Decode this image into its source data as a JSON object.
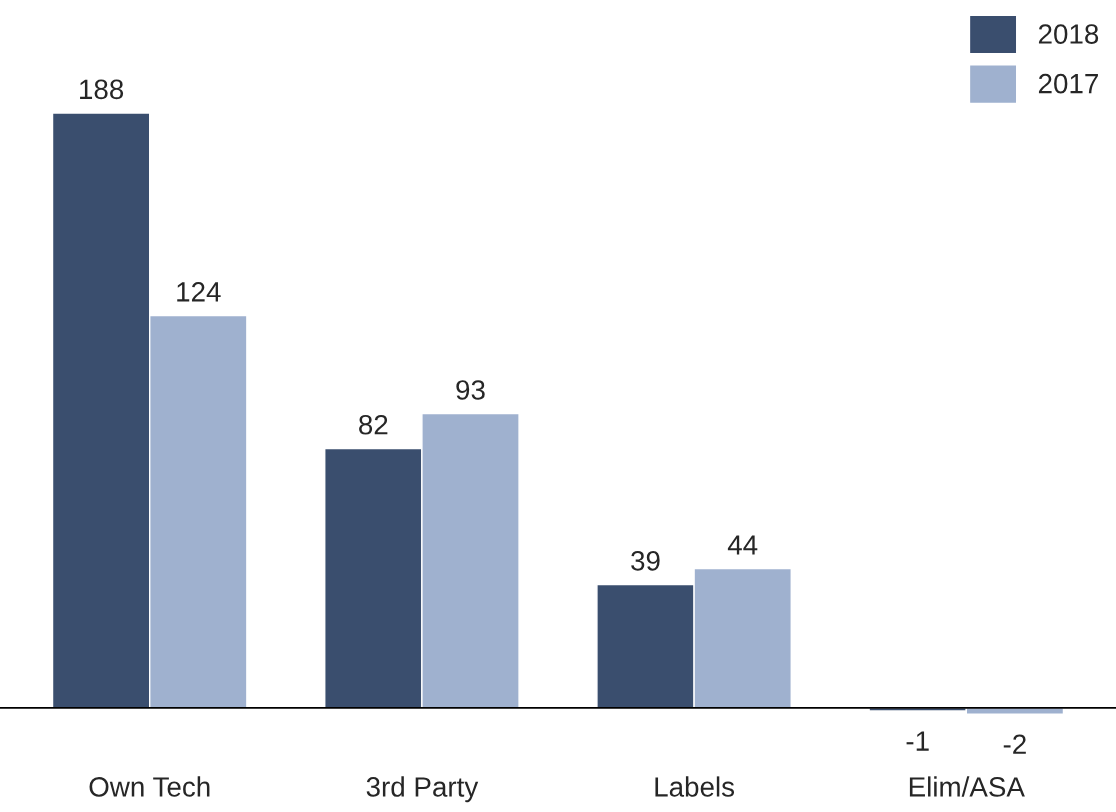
{
  "chart_data": {
    "type": "bar",
    "categories": [
      "Own Tech",
      "3rd Party",
      "Labels",
      "Elim/ASA"
    ],
    "series": [
      {
        "name": "2018",
        "color": "#3a4e6e",
        "values": [
          188,
          82,
          39,
          -1
        ]
      },
      {
        "name": "2017",
        "color": "#9fb1cf",
        "values": [
          124,
          93,
          44,
          -2
        ]
      }
    ],
    "data_labels": true,
    "legend": "top right"
  }
}
